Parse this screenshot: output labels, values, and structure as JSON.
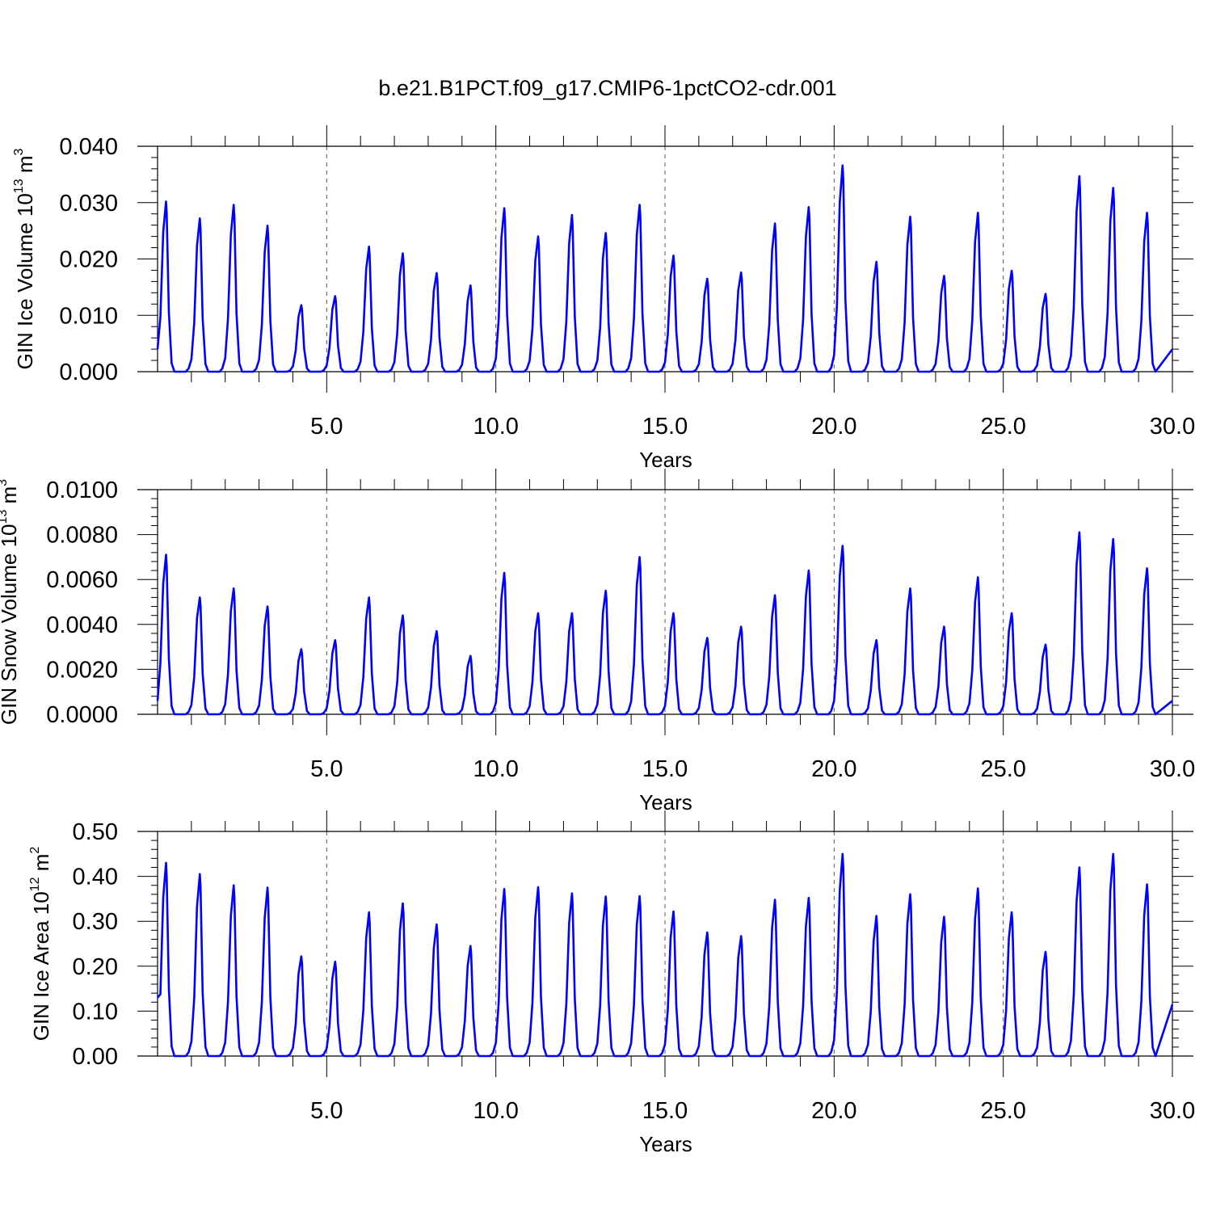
{
  "title": "b.e21.B1PCT.f09_g17.CMIP6-1pctCO2-cdr.001",
  "chart_data": [
    {
      "type": "line",
      "title": "b.e21.B1PCT.f09_g17.CMIP6-1pctCO2-cdr.001",
      "xlabel": "Years",
      "ylabel": "GIN Ice Volume 10",
      "ylabel_exp": "13",
      "ylabel_unit": " m",
      "ylabel_unit_exp": "3",
      "xlim": [
        0,
        30
      ],
      "ylim": [
        0,
        0.04
      ],
      "xticks": [
        5,
        10,
        15,
        20,
        25,
        30
      ],
      "xtick_labels": [
        "5.0",
        "10.0",
        "15.0",
        "20.0",
        "25.0",
        "30.0"
      ],
      "yticks": [
        0,
        0.01,
        0.02,
        0.03,
        0.04
      ],
      "ytick_labels": [
        "0.000",
        "0.010",
        "0.020",
        "0.030",
        "0.040"
      ],
      "grid": "vertical-dashed",
      "series_color": "#0000ff",
      "peaks": [
        0.0302,
        0.0272,
        0.0296,
        0.0259,
        0.0118,
        0.0134,
        0.0222,
        0.021,
        0.0175,
        0.0153,
        0.029,
        0.024,
        0.0278,
        0.0246,
        0.0296,
        0.0206,
        0.0165,
        0.0176,
        0.0263,
        0.0292,
        0.0366,
        0.0195,
        0.0275,
        0.017,
        0.0282,
        0.0179,
        0.0138,
        0.0347,
        0.0326,
        0.0282
      ],
      "start_value": 0.004,
      "end_value": 0.004
    },
    {
      "type": "line",
      "xlabel": "Years",
      "ylabel": "GIN Snow Volume 10",
      "ylabel_exp": "13",
      "ylabel_unit": " m",
      "ylabel_unit_exp": "3",
      "xlim": [
        0,
        30
      ],
      "ylim": [
        0,
        0.01
      ],
      "xticks": [
        5,
        10,
        15,
        20,
        25,
        30
      ],
      "xtick_labels": [
        "5.0",
        "10.0",
        "15.0",
        "20.0",
        "25.0",
        "30.0"
      ],
      "yticks": [
        0,
        0.002,
        0.004,
        0.006,
        0.008,
        0.01
      ],
      "ytick_labels": [
        "0.0000",
        "0.0020",
        "0.0040",
        "0.0060",
        "0.0080",
        "0.0100"
      ],
      "grid": "vertical-dashed",
      "series_color": "#0000ff",
      "peaks": [
        0.0071,
        0.0052,
        0.0056,
        0.0048,
        0.0029,
        0.0033,
        0.0052,
        0.0044,
        0.0037,
        0.0026,
        0.0063,
        0.0045,
        0.0045,
        0.0055,
        0.007,
        0.0045,
        0.0034,
        0.0039,
        0.0053,
        0.0064,
        0.0075,
        0.0033,
        0.0056,
        0.0039,
        0.0061,
        0.0045,
        0.0031,
        0.0081,
        0.0078,
        0.0065
      ],
      "start_value": 0.0006,
      "end_value": 0.0006
    },
    {
      "type": "line",
      "xlabel": "Years",
      "ylabel": "GIN Ice Area 10",
      "ylabel_exp": "12",
      "ylabel_unit": " m",
      "ylabel_unit_exp": "2",
      "xlim": [
        0,
        30
      ],
      "ylim": [
        0,
        0.5
      ],
      "xticks": [
        5,
        10,
        15,
        20,
        25,
        30
      ],
      "xtick_labels": [
        "5.0",
        "10.0",
        "15.0",
        "20.0",
        "25.0",
        "30.0"
      ],
      "yticks": [
        0,
        0.1,
        0.2,
        0.3,
        0.4,
        0.5
      ],
      "ytick_labels": [
        "0.00",
        "0.10",
        "0.20",
        "0.30",
        "0.40",
        "0.50"
      ],
      "grid": "vertical-dashed",
      "series_color": "#0000ff",
      "peaks": [
        0.43,
        0.405,
        0.38,
        0.375,
        0.222,
        0.21,
        0.32,
        0.34,
        0.293,
        0.245,
        0.372,
        0.376,
        0.362,
        0.355,
        0.356,
        0.322,
        0.275,
        0.267,
        0.348,
        0.352,
        0.45,
        0.312,
        0.36,
        0.31,
        0.373,
        0.32,
        0.232,
        0.42,
        0.45,
        0.382
      ],
      "start_value": 0.13,
      "end_value": 0.115
    }
  ]
}
